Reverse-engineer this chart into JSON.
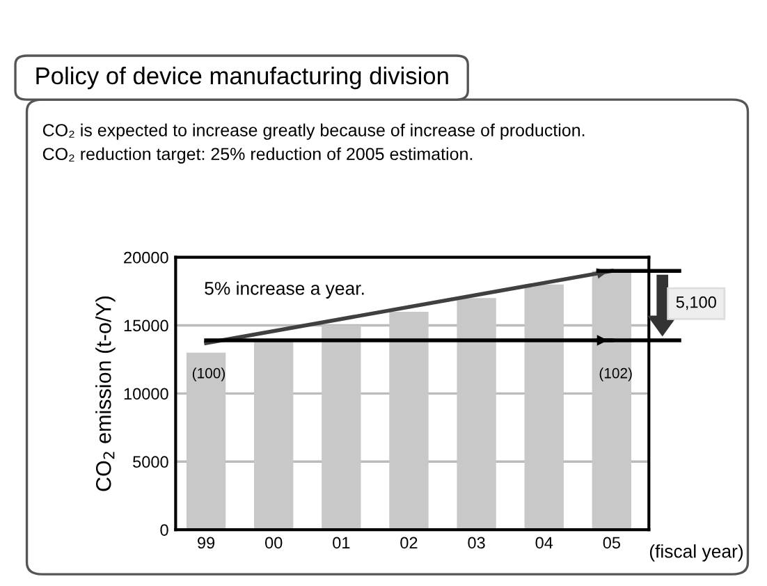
{
  "chart_data": {
    "type": "bar",
    "title": "Policy of device manufacturing division",
    "subtitle": "CO₂ is expected to increase greatly because of increase of production.\nCO₂ reduction target: 25% reduction of 2005 estimation.",
    "ylabel": "CO$_{2}$ emission (t-o/Y)",
    "xlabel": "(fiscal year)",
    "categories": [
      "99",
      "00",
      "01",
      "02",
      "03",
      "04",
      "05"
    ],
    "series": [
      {
        "color": "#c8c8c8",
        "values": [
          13000,
          14000,
          15000,
          16000,
          17000,
          18000,
          19000
        ]
      },
      {
        "type": "line",
        "color": "#404040",
        "x": [
          "99",
          "05"
        ],
        "values": [
          13700,
          19000
        ]
      },
      {
        "type": "line",
        "color": "#000000",
        "x": [
          "99",
          "05"
        ],
        "values": [
          13900,
          13900
        ]
      }
    ],
    "annotations": [
      "5% increase a year.",
      "5,100",
      "(100)",
      "(102)"
    ],
    "ylim": [
      0,
      20000
    ],
    "yticks": [
      0,
      5000,
      10000,
      15000,
      20000
    ],
    "grid": "y"
  }
}
